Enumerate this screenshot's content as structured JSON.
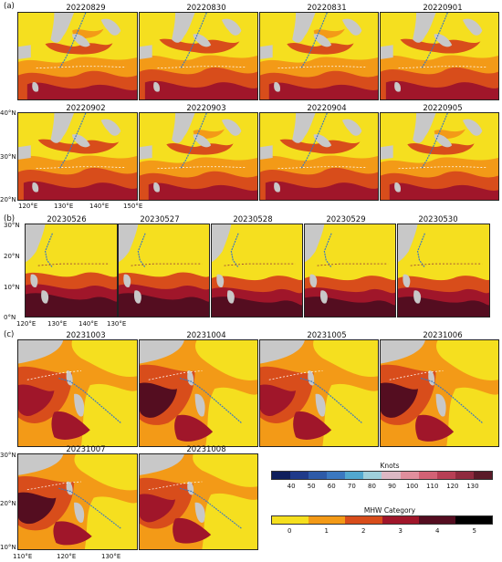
{
  "section_a": {
    "label": "(a)",
    "dates": [
      "20220829",
      "20220830",
      "20220831",
      "20220901",
      "20220902",
      "20220903",
      "20220904",
      "20220905"
    ],
    "lat_ticks": [
      "40°N",
      "30°N",
      "20°N"
    ],
    "lon_ticks": [
      "120°E",
      "130°E",
      "140°E",
      "150°E"
    ]
  },
  "section_b": {
    "label": "(b)",
    "dates": [
      "20230526",
      "20230527",
      "20230528",
      "20230529",
      "20230530"
    ],
    "lat_ticks": [
      "30°N",
      "20°N",
      "10°N",
      "0°N"
    ],
    "lon_ticks": [
      "120°E",
      "130°E",
      "140°E",
      "130°E"
    ]
  },
  "section_c": {
    "label": "(c)",
    "dates": [
      "20231003",
      "20231004",
      "20231005",
      "20231006",
      "20231007",
      "20231008"
    ],
    "lat_ticks": [
      "30°N",
      "20°N",
      "10°N"
    ],
    "lon_ticks": [
      "110°E",
      "120°E",
      "130°E"
    ]
  },
  "legend": {
    "knots": {
      "title": "Knots",
      "ticks": [
        "40",
        "50",
        "60",
        "70",
        "80",
        "90",
        "100",
        "110",
        "120",
        "130"
      ],
      "colors": [
        "#0f1f5c",
        "#1f3a8a",
        "#2d5aa8",
        "#3b78c0",
        "#52a8cf",
        "#9fd0dc",
        "#dcb8c4",
        "#e08f9d",
        "#d26275",
        "#b73f55",
        "#8f2a3e",
        "#5a1a28"
      ]
    },
    "mhw": {
      "title": "MHW Category",
      "ticks": [
        "0",
        "1",
        "2",
        "3",
        "4",
        "5"
      ],
      "colors": [
        "#f5df1f",
        "#f39a17",
        "#d84d1b",
        "#a0162a",
        "#540d20",
        "#000000"
      ]
    }
  }
}
